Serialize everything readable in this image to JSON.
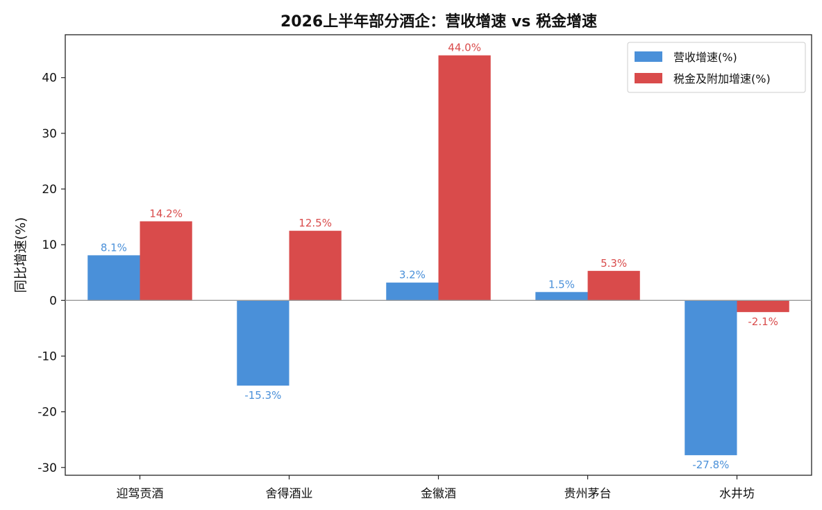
{
  "chart_data": {
    "type": "bar",
    "title": "2026上半年部分酒企：营收增速 vs 税金增速",
    "xlabel": "",
    "ylabel": "同比增速(%)",
    "categories": [
      "迎驾贡酒",
      "舍得酒业",
      "金徽酒",
      "贵州茅台",
      "水井坊"
    ],
    "series": [
      {
        "name": "营收增速(%)",
        "values": [
          8.1,
          -15.3,
          3.2,
          1.5,
          -27.8
        ],
        "labels": [
          "8.1%",
          "-15.3%",
          "3.2%",
          "1.5%",
          "-27.8%"
        ],
        "color": "#4A90D9"
      },
      {
        "name": "税金及附加增速(%)",
        "values": [
          14.2,
          12.5,
          44.0,
          5.3,
          -2.1
        ],
        "labels": [
          "14.2%",
          "12.5%",
          "44.0%",
          "5.3%",
          "-2.1%"
        ],
        "color": "#D94B4B"
      }
    ],
    "yticks": [
      -30,
      -20,
      -10,
      0,
      10,
      20,
      30,
      40
    ],
    "ytick_labels": [
      "-30",
      "-20",
      "-10",
      "0",
      "10",
      "20",
      "30",
      "40"
    ],
    "ylim": [
      -31.4,
      47.7
    ],
    "zero_line": true,
    "grid": false,
    "legend_position": "top-right"
  }
}
